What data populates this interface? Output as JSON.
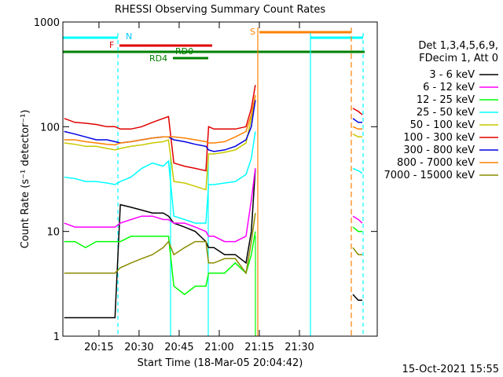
{
  "chart_data": {
    "type": "line",
    "title": "RHESSI Observing Summary Count Rates",
    "xlabel": "Start Time (18-Mar-05 20:04:42)",
    "ylabel": "Count Rate (s⁻¹ detector⁻¹)",
    "legend_title": [
      "Det 1,3,4,5,6,9,",
      "FDecim 1, Att 0"
    ],
    "footer": "15-Oct-2021 15:55",
    "annotations": [
      "N",
      "F",
      "RD0",
      "RD4",
      "S"
    ],
    "log_y": true,
    "xlim": [
      1.5,
      119.1
    ],
    "ylim": [
      1,
      1000
    ],
    "xticks": [
      {
        "value": 15,
        "label": "20:15"
      },
      {
        "value": 30,
        "label": "20:30"
      },
      {
        "value": 45,
        "label": "20:45"
      },
      {
        "value": 60,
        "label": "21:00"
      },
      {
        "value": 75,
        "label": "21:15"
      },
      {
        "value": 90,
        "label": "21:30"
      }
    ],
    "yticks": [
      1,
      10,
      100,
      1000
    ],
    "x": [
      2,
      6,
      10,
      14,
      18,
      21,
      23,
      27,
      31,
      35,
      39,
      41,
      43,
      47,
      51,
      55,
      56,
      58,
      62,
      66,
      70,
      72,
      73.5,
      90,
      110,
      112,
      113.5
    ],
    "series": [
      {
        "name": "3 - 6 keV",
        "color": "#000000",
        "values": [
          1.5,
          1.5,
          1.5,
          1.5,
          1.5,
          1.5,
          18,
          17,
          16,
          15,
          15,
          14,
          12,
          11,
          10,
          8,
          7,
          7,
          6,
          6,
          5,
          10,
          40,
          null,
          2.5,
          2.2,
          2.2
        ]
      },
      {
        "name": "6 - 12 keV",
        "color": "#ff00ff",
        "values": [
          12,
          11,
          11,
          11,
          11,
          11,
          12,
          13,
          14,
          14,
          13,
          13,
          12,
          12,
          11,
          10,
          9,
          9,
          8,
          8,
          9,
          20,
          40,
          null,
          14,
          13,
          12
        ]
      },
      {
        "name": "12 - 25 keV",
        "color": "#00ff00",
        "values": [
          8,
          8,
          7,
          8,
          8,
          8,
          8,
          9,
          9,
          9,
          9,
          9,
          3,
          2.5,
          3,
          3,
          4,
          4,
          4,
          5,
          4,
          6,
          10,
          null,
          11,
          10,
          10
        ]
      },
      {
        "name": "25 - 50 keV",
        "color": "#00ffff",
        "values": [
          33,
          32,
          30,
          30,
          29,
          28,
          30,
          33,
          40,
          45,
          42,
          47,
          14,
          13,
          12,
          12,
          28,
          28,
          29,
          30,
          35,
          50,
          90,
          null,
          40,
          38,
          36
        ]
      },
      {
        "name": "50 - 100 keV",
        "color": "#c8c800",
        "values": [
          70,
          68,
          65,
          65,
          62,
          60,
          62,
          65,
          67,
          70,
          72,
          75,
          30,
          29,
          27,
          25,
          55,
          55,
          57,
          60,
          70,
          120,
          200,
          null,
          85,
          80,
          80
        ]
      },
      {
        "name": "100 - 300 keV",
        "color": "#e00000",
        "values": [
          120,
          110,
          108,
          105,
          100,
          100,
          95,
          95,
          100,
          110,
          120,
          125,
          45,
          42,
          40,
          38,
          100,
          95,
          95,
          95,
          100,
          150,
          250,
          null,
          150,
          140,
          130
        ]
      },
      {
        "name": "300 - 800 keV",
        "color": "#0000e0",
        "values": [
          90,
          85,
          80,
          75,
          75,
          72,
          70,
          72,
          75,
          78,
          80,
          80,
          75,
          72,
          68,
          65,
          60,
          58,
          60,
          65,
          75,
          100,
          180,
          null,
          120,
          110,
          110
        ]
      },
      {
        "name": "800 - 7000 keV",
        "color": "#ff8000",
        "values": [
          75,
          75,
          72,
          70,
          68,
          67,
          70,
          72,
          75,
          78,
          80,
          80,
          80,
          78,
          75,
          72,
          70,
          70,
          72,
          80,
          90,
          130,
          200,
          null,
          100,
          95,
          95
        ]
      },
      {
        "name": "7000 - 15000 keV",
        "color": "#8b8b00",
        "values": [
          4,
          4,
          4,
          4,
          4,
          4,
          4.5,
          5,
          5.5,
          6,
          7,
          8,
          6,
          7,
          8,
          8,
          5,
          5,
          5.5,
          5.5,
          4,
          8,
          15,
          null,
          7,
          6,
          6
        ]
      }
    ]
  }
}
